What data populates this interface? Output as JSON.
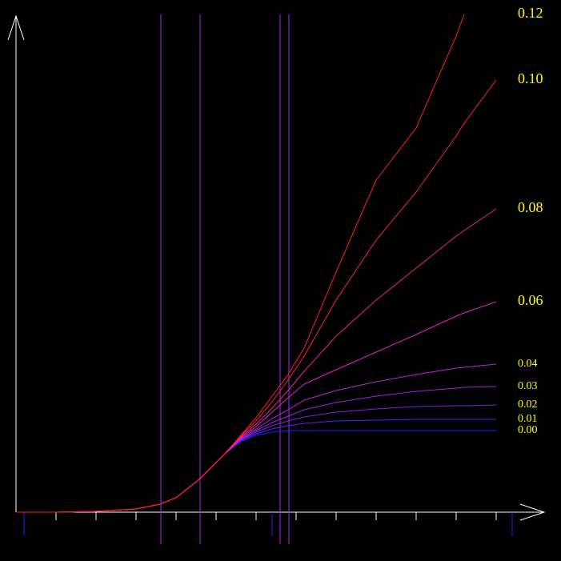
{
  "chart_data": {
    "type": "line",
    "x": [
      0,
      50,
      100,
      150,
      180,
      200,
      230,
      260,
      280,
      300,
      320,
      340,
      360,
      400,
      450,
      500,
      550,
      560,
      600
    ],
    "xlim": [
      0,
      660
    ],
    "ylim": [
      0,
      620
    ],
    "xticks": [
      50,
      100,
      150,
      200,
      250,
      300,
      350,
      400,
      450,
      500,
      550,
      600
    ],
    "markers": [
      10,
      320,
      620
    ],
    "marker_color": "#2020ff",
    "vlines": [
      181,
      230,
      330,
      341
    ],
    "vline_color": "#a030e8",
    "label_color": "#ffff00",
    "series": [
      {
        "name": "0.00",
        "color": "#2020ff",
        "values": [
          0,
          0,
          1,
          4,
          10,
          18,
          42,
          72,
          88,
          96,
          100,
          102,
          102,
          102,
          102,
          102,
          102,
          102,
          102
        ]
      },
      {
        "name": "0.01",
        "color": "#5a20f8",
        "values": [
          0,
          0,
          1,
          4,
          10,
          18,
          42,
          72,
          89,
          98,
          104,
          108,
          111,
          114,
          115,
          116,
          116,
          116,
          116
        ]
      },
      {
        "name": "0.02",
        "color": "#7e20f0",
        "values": [
          0,
          0,
          1,
          4,
          10,
          18,
          42,
          72,
          90,
          100,
          108,
          114,
          119,
          125,
          129,
          132,
          133,
          133,
          134
        ]
      },
      {
        "name": "0.03",
        "color": "#a020e8",
        "values": [
          0,
          0,
          1,
          4,
          10,
          18,
          42,
          72,
          90,
          102,
          112,
          120,
          128,
          137,
          145,
          151,
          155,
          156,
          157
        ]
      },
      {
        "name": "0.04",
        "color": "#c020e0",
        "values": [
          0,
          0,
          1,
          4,
          10,
          18,
          42,
          72,
          91,
          104,
          117,
          128,
          140,
          152,
          163,
          172,
          180,
          181,
          185
        ]
      },
      {
        "name": "0.06",
        "color": "#e020d0",
        "values": [
          0,
          0,
          1,
          4,
          10,
          18,
          42,
          72,
          92,
          107,
          125,
          143,
          160,
          178,
          200,
          222,
          245,
          249,
          263
        ]
      },
      {
        "name": "0.08",
        "color": "#f02090",
        "values": [
          0,
          0,
          1,
          4,
          10,
          18,
          42,
          72,
          93,
          110,
          130,
          152,
          176,
          220,
          265,
          305,
          345,
          352,
          379
        ]
      },
      {
        "name": "0.10",
        "color": "#f82050",
        "values": [
          0,
          0,
          1,
          4,
          10,
          18,
          42,
          72,
          94,
          114,
          138,
          165,
          195,
          265,
          340,
          400,
          470,
          486,
          540
        ]
      },
      {
        "name": "0.12",
        "color": "#ff2020",
        "values": [
          0,
          0,
          1,
          4,
          10,
          18,
          42,
          72,
          95,
          118,
          145,
          172,
          205,
          300,
          415,
          480,
          595,
          622,
          null
        ]
      }
    ]
  }
}
